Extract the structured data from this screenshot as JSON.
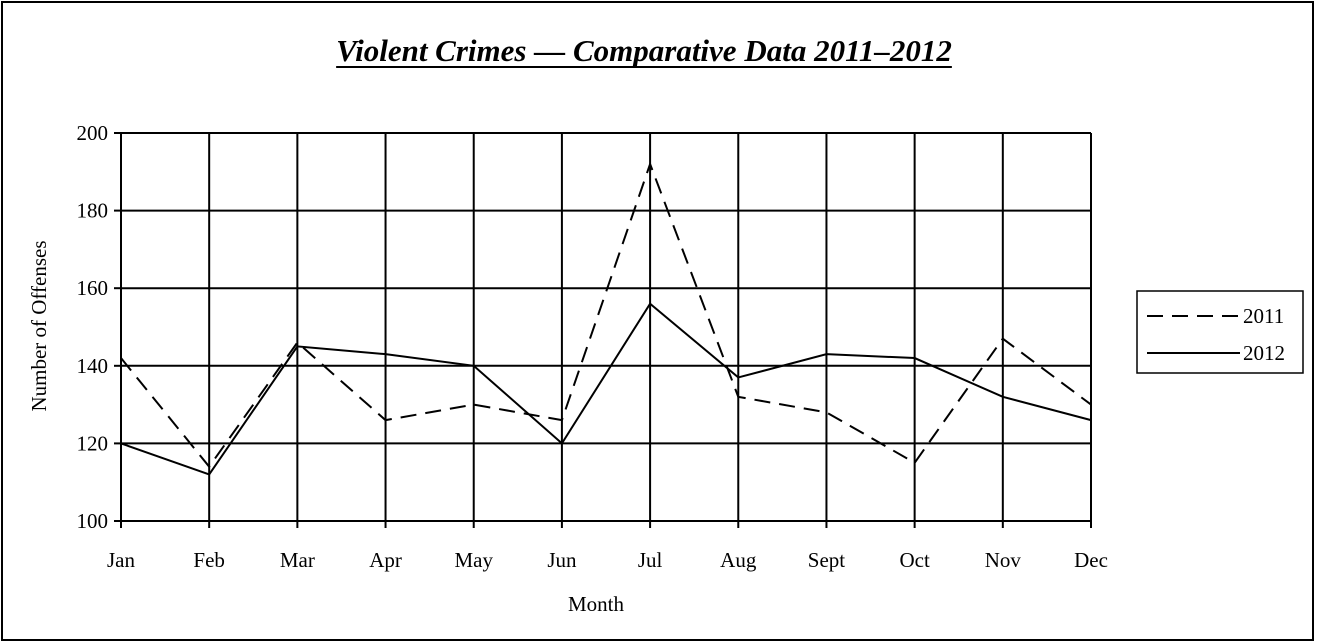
{
  "chart_data": {
    "type": "line",
    "title": "Violent Crimes — Comparative Data 2011–2012",
    "xlabel": "Month",
    "ylabel": "Number of Offenses",
    "categories": [
      "Jan",
      "Feb",
      "Mar",
      "Apr",
      "May",
      "Jun",
      "Jul",
      "Aug",
      "Sept",
      "Oct",
      "Nov",
      "Dec"
    ],
    "ylim": [
      100,
      200
    ],
    "yticks": [
      "100",
      "120",
      "140",
      "160",
      "180",
      "200"
    ],
    "grid": true,
    "legend_position": "right",
    "series": [
      {
        "name": "2011",
        "style": "dashed",
        "color": "#000000",
        "values": [
          142,
          114,
          146,
          126,
          130,
          126,
          192,
          132,
          128,
          115,
          147,
          130
        ]
      },
      {
        "name": "2012",
        "style": "solid",
        "color": "#000000",
        "values": [
          120,
          112,
          145,
          143,
          140,
          120,
          156,
          137,
          143,
          142,
          132,
          126
        ]
      }
    ]
  }
}
